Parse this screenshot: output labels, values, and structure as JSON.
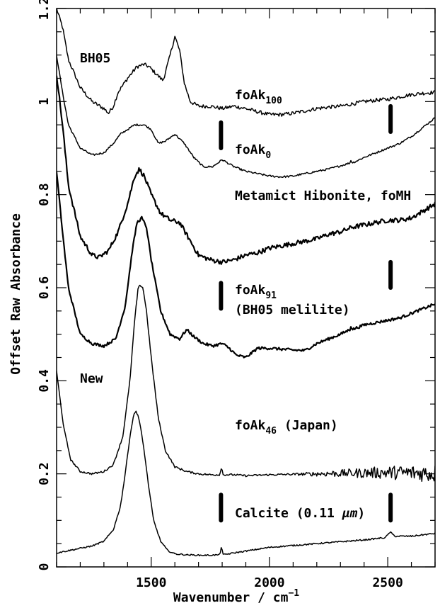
{
  "chart_data": {
    "type": "line",
    "xlabel": "Wavenumber / cm",
    "xlabel_exponent": "−1",
    "ylabel": "Offset Raw Absorbance",
    "xlim": [
      1100,
      2700
    ],
    "ylim": [
      0,
      1.2
    ],
    "xticks": [
      "1500",
      "2000",
      "2500"
    ],
    "xtick_values": [
      1500,
      2000,
      2500
    ],
    "yticks": [
      "0",
      "0.2",
      "0.4",
      "0.6",
      "0.8",
      "1",
      "1.2"
    ],
    "ytick_values": [
      0,
      0.2,
      0.4,
      0.6,
      0.8,
      1.0,
      1.2
    ],
    "grid": false,
    "legend": "none",
    "line_color": "#000000",
    "annotations": {
      "bh05": "BH05",
      "new": "New",
      "fo100": {
        "base": "foAk",
        "sub": "100"
      },
      "fo0": {
        "base": "foAk",
        "sub": "0"
      },
      "metamict": "Metamict Hibonite, foMH",
      "fo91": {
        "base": "foAk",
        "sub": "91"
      },
      "bh05_melilite": "(BH05 melilite)",
      "fo46": {
        "base": "foAk",
        "sub": "46",
        "rest": " (Japan)"
      },
      "calcite": {
        "pre": "Calcite (0.11 ",
        "unit": "μm",
        "post": ")"
      }
    },
    "markers": [
      {
        "x": 1795,
        "y": [
          0.9,
          0.955
        ]
      },
      {
        "x": 2512,
        "y": [
          0.935,
          0.99
        ]
      },
      {
        "x": 1795,
        "y": [
          0.555,
          0.61
        ]
      },
      {
        "x": 2512,
        "y": [
          0.6,
          0.655
        ]
      },
      {
        "x": 1795,
        "y": [
          0.1,
          0.155
        ]
      },
      {
        "x": 2512,
        "y": [
          0.1,
          0.155
        ]
      }
    ],
    "series": [
      {
        "noise": 0.004,
        "thick": false,
        "x": [
          1100,
          1125,
          1150,
          1200,
          1250,
          1300,
          1320,
          1340,
          1360,
          1400,
          1440,
          1470,
          1490,
          1520,
          1550,
          1575,
          1600,
          1620,
          1640,
          1665,
          1700,
          1750,
          1800,
          1850,
          1900,
          1950,
          2000,
          2050,
          2100,
          2150,
          2200,
          2250,
          2300,
          2350,
          2400,
          2450,
          2500,
          2550,
          2600,
          2650,
          2700
        ],
        "y": [
          1.2,
          1.16,
          1.09,
          1.03,
          1.0,
          0.985,
          0.975,
          0.99,
          1.02,
          1.05,
          1.075,
          1.08,
          1.075,
          1.06,
          1.045,
          1.09,
          1.14,
          1.11,
          1.04,
          1.0,
          0.99,
          0.99,
          0.985,
          0.99,
          0.985,
          0.978,
          0.972,
          0.972,
          0.975,
          0.98,
          0.985,
          0.988,
          0.99,
          0.995,
          1.0,
          1.003,
          1.005,
          1.01,
          1.015,
          1.018,
          1.02
        ]
      },
      {
        "noise": 0.002,
        "thick": false,
        "x": [
          1100,
          1125,
          1150,
          1200,
          1250,
          1300,
          1340,
          1370,
          1400,
          1430,
          1470,
          1500,
          1530,
          1560,
          1600,
          1640,
          1680,
          1720,
          1760,
          1800,
          1850,
          1900,
          1950,
          2000,
          2050,
          2100,
          2150,
          2200,
          2250,
          2300,
          2340,
          2345,
          2350,
          2400,
          2450,
          2500,
          2550,
          2600,
          2650,
          2700
        ],
        "y": [
          1.1,
          1.02,
          0.95,
          0.9,
          0.885,
          0.89,
          0.91,
          0.93,
          0.94,
          0.95,
          0.95,
          0.94,
          0.91,
          0.915,
          0.93,
          0.91,
          0.88,
          0.86,
          0.86,
          0.875,
          0.86,
          0.85,
          0.845,
          0.84,
          0.838,
          0.84,
          0.845,
          0.85,
          0.855,
          0.862,
          0.868,
          0.875,
          0.868,
          0.88,
          0.89,
          0.9,
          0.91,
          0.925,
          0.945,
          0.965
        ]
      },
      {
        "noise": 0.005,
        "thick": true,
        "x": [
          1100,
          1125,
          1150,
          1200,
          1250,
          1280,
          1320,
          1360,
          1400,
          1430,
          1450,
          1470,
          1500,
          1540,
          1580,
          1620,
          1660,
          1700,
          1750,
          1800,
          1850,
          1900,
          1950,
          2000,
          2050,
          2100,
          2150,
          2200,
          2250,
          2300,
          2350,
          2400,
          2450,
          2500,
          2550,
          2600,
          2650,
          2700
        ],
        "y": [
          1.06,
          0.95,
          0.82,
          0.71,
          0.67,
          0.665,
          0.68,
          0.72,
          0.78,
          0.84,
          0.855,
          0.84,
          0.8,
          0.76,
          0.745,
          0.74,
          0.705,
          0.67,
          0.66,
          0.655,
          0.66,
          0.67,
          0.675,
          0.685,
          0.69,
          0.695,
          0.7,
          0.705,
          0.715,
          0.72,
          0.73,
          0.735,
          0.74,
          0.745,
          0.745,
          0.75,
          0.765,
          0.78
        ]
      },
      {
        "noise": 0.003,
        "thick": true,
        "x": [
          1100,
          1125,
          1150,
          1200,
          1250,
          1300,
          1350,
          1390,
          1420,
          1440,
          1460,
          1480,
          1500,
          1540,
          1580,
          1620,
          1650,
          1680,
          1720,
          1760,
          1800,
          1830,
          1860,
          1900,
          1950,
          2000,
          2050,
          2100,
          2150,
          2200,
          2250,
          2300,
          2340,
          2345,
          2350,
          2400,
          2450,
          2500,
          2550,
          2600,
          2650,
          2700
        ],
        "y": [
          0.85,
          0.72,
          0.6,
          0.5,
          0.48,
          0.475,
          0.49,
          0.56,
          0.68,
          0.74,
          0.75,
          0.73,
          0.66,
          0.55,
          0.5,
          0.49,
          0.51,
          0.495,
          0.48,
          0.475,
          0.48,
          0.47,
          0.455,
          0.45,
          0.47,
          0.47,
          0.468,
          0.466,
          0.465,
          0.48,
          0.49,
          0.5,
          0.51,
          0.52,
          0.51,
          0.52,
          0.525,
          0.53,
          0.535,
          0.545,
          0.555,
          0.565
        ]
      },
      {
        "noise": 0.002,
        "noise_ramp": {
          "from": 2100,
          "to": 2700,
          "amp": 0.018
        },
        "thick": false,
        "x": [
          1100,
          1130,
          1160,
          1200,
          1250,
          1300,
          1340,
          1380,
          1410,
          1430,
          1445,
          1455,
          1465,
          1480,
          1500,
          1530,
          1560,
          1600,
          1650,
          1700,
          1750,
          1790,
          1797,
          1804,
          1850,
          1900,
          1950,
          2000,
          2100,
          2200,
          2300,
          2400,
          2500,
          2600,
          2700
        ],
        "y": [
          0.42,
          0.3,
          0.23,
          0.205,
          0.2,
          0.205,
          0.22,
          0.28,
          0.4,
          0.53,
          0.6,
          0.605,
          0.6,
          0.55,
          0.45,
          0.32,
          0.25,
          0.215,
          0.205,
          0.2,
          0.198,
          0.198,
          0.215,
          0.198,
          0.198,
          0.196,
          0.197,
          0.198,
          0.199,
          0.2,
          0.201,
          0.202,
          0.203,
          0.202,
          0.201
        ]
      },
      {
        "noise": 0.0015,
        "thick": false,
        "x": [
          1100,
          1150,
          1200,
          1250,
          1300,
          1340,
          1370,
          1390,
          1410,
          1425,
          1435,
          1445,
          1455,
          1470,
          1490,
          1510,
          1540,
          1570,
          1600,
          1650,
          1700,
          1750,
          1790,
          1797,
          1804,
          1850,
          1900,
          1950,
          2000,
          2100,
          2200,
          2300,
          2400,
          2490,
          2510,
          2530,
          2600,
          2700
        ],
        "y": [
          0.03,
          0.035,
          0.04,
          0.045,
          0.055,
          0.08,
          0.13,
          0.2,
          0.28,
          0.325,
          0.335,
          0.325,
          0.3,
          0.25,
          0.17,
          0.1,
          0.055,
          0.035,
          0.028,
          0.026,
          0.025,
          0.025,
          0.026,
          0.045,
          0.026,
          0.03,
          0.034,
          0.038,
          0.042,
          0.046,
          0.05,
          0.054,
          0.058,
          0.063,
          0.075,
          0.066,
          0.066,
          0.072
        ]
      }
    ]
  }
}
